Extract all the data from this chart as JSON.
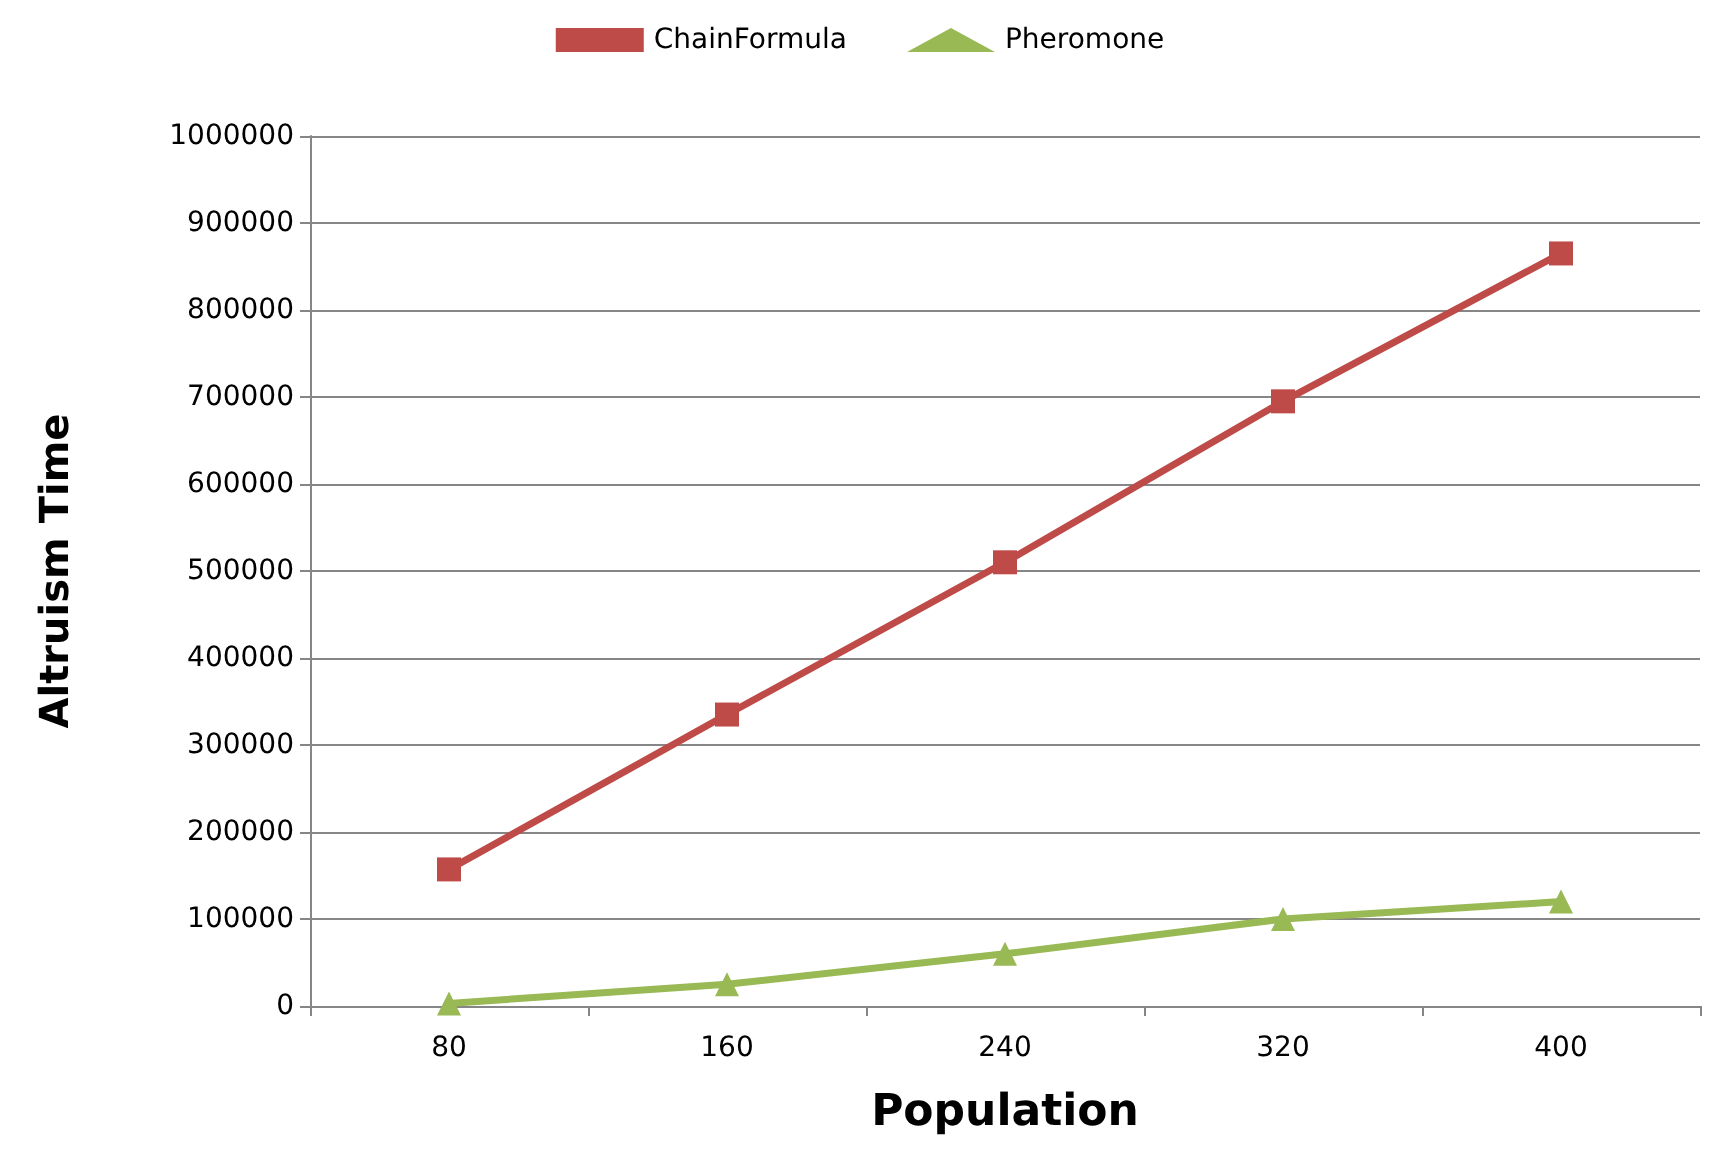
{
  "chart_data": {
    "type": "line",
    "xlabel": "Population",
    "ylabel": "Altruism Time",
    "categories": [
      "80",
      "160",
      "240",
      "320",
      "400"
    ],
    "series": [
      {
        "name": "ChainFormula",
        "color": "#be4b48",
        "marker": "square",
        "values": [
          157000,
          335000,
          510000,
          695000,
          865000
        ]
      },
      {
        "name": "Pheromone",
        "color": "#98b954",
        "marker": "triangle",
        "values": [
          3000,
          25000,
          60000,
          100000,
          120000
        ]
      }
    ],
    "ylim": [
      0,
      1000000
    ],
    "yticks": [
      0,
      100000,
      200000,
      300000,
      400000,
      500000,
      600000,
      700000,
      800000,
      900000,
      1000000
    ],
    "grid": "y",
    "legend": "top",
    "line_style": "solid"
  }
}
